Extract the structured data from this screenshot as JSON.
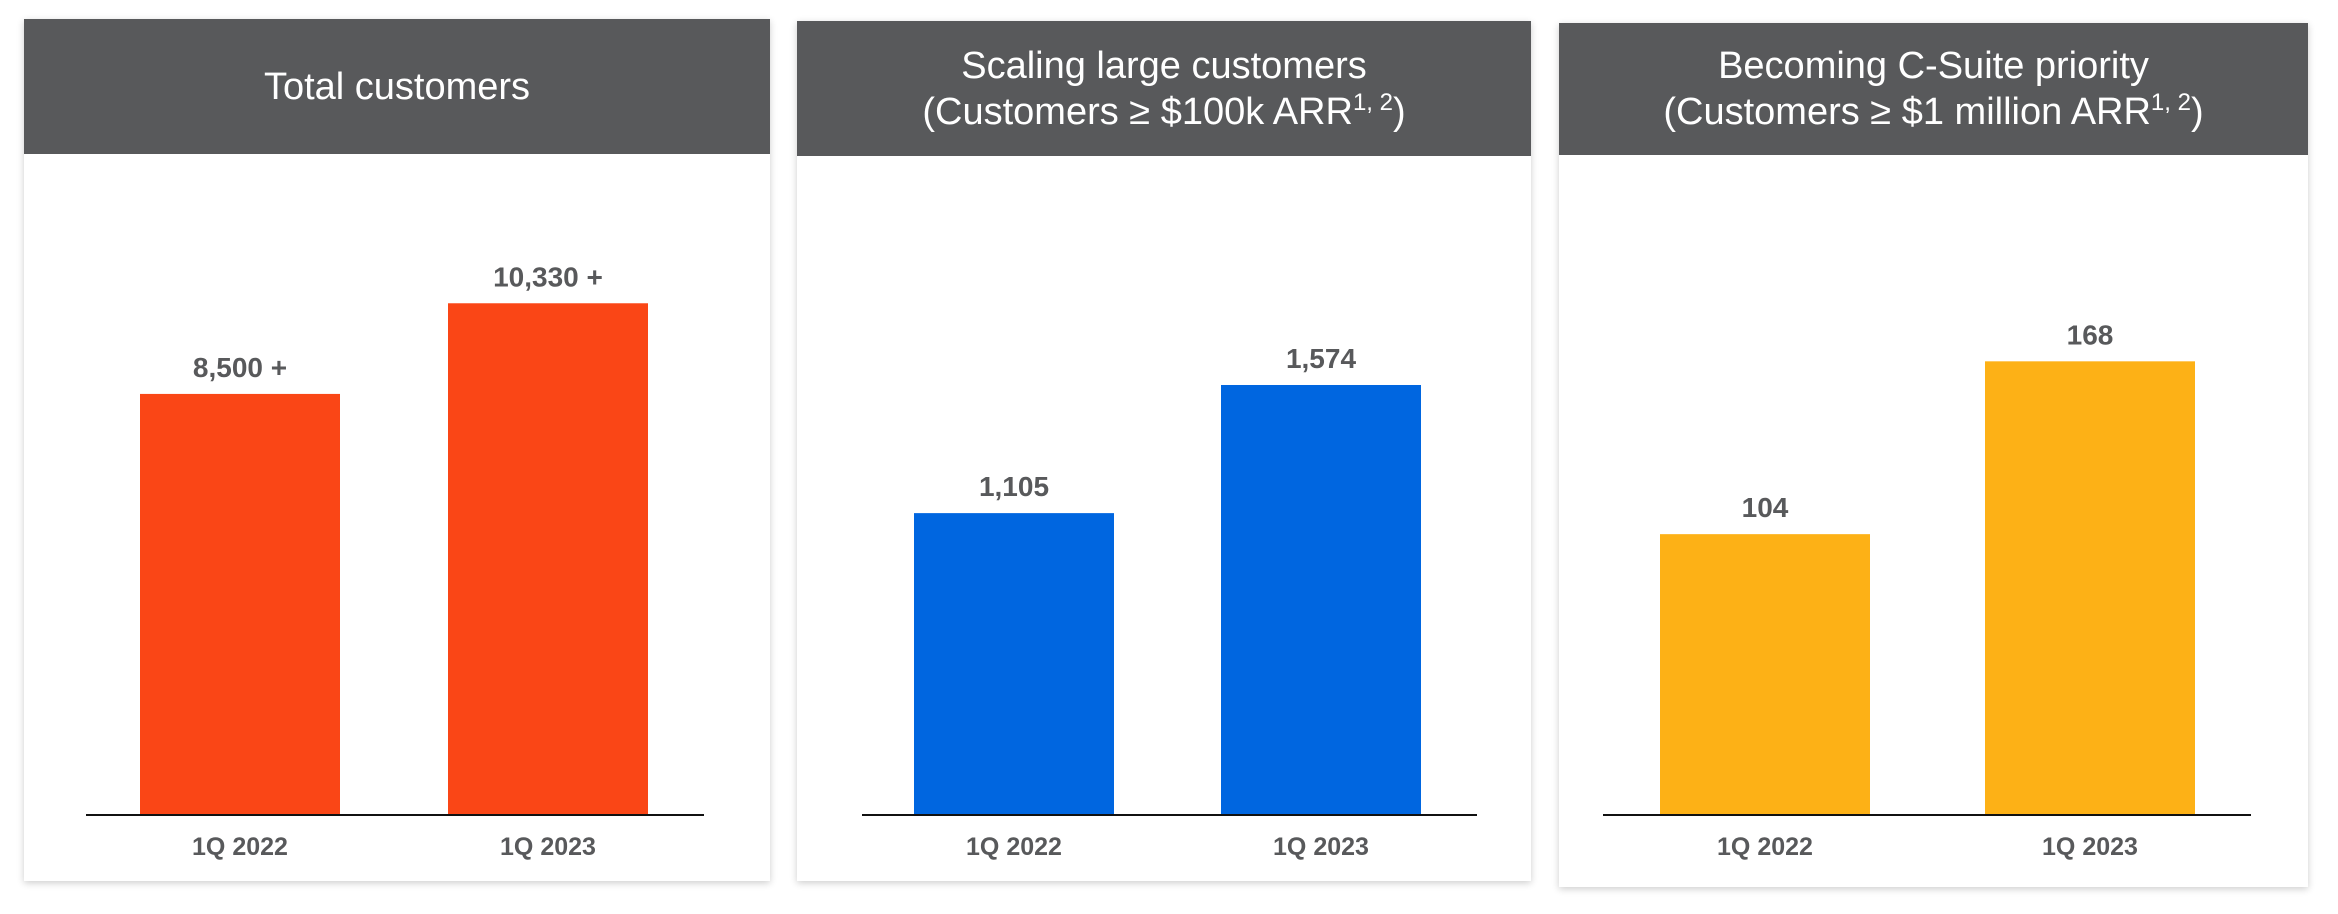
{
  "chart_data": [
    {
      "type": "bar",
      "title": "Total customers",
      "subtitle": "",
      "categories": [
        "1Q 2022",
        "1Q 2023"
      ],
      "values": [
        8500,
        10330
      ],
      "data_labels": [
        "8,500 +",
        "10,330 +"
      ],
      "ylim": [
        0,
        13000
      ],
      "color": "#fa4616",
      "grid": false
    },
    {
      "type": "bar",
      "title": "Scaling large customers",
      "subtitle": "(Customers ≥ $100k ARR",
      "subtitle_sup": "1, 2",
      "subtitle_end": ")",
      "categories": [
        "1Q 2022",
        "1Q 2023"
      ],
      "values": [
        1105,
        1574
      ],
      "data_labels": [
        "1,105",
        "1,574"
      ],
      "ylim": [
        0,
        2350
      ],
      "color": "#0066e0",
      "grid": false
    },
    {
      "type": "bar",
      "title": "Becoming C-Suite priority",
      "subtitle": "(Customers ≥ $1 million ARR",
      "subtitle_sup": "1, 2",
      "subtitle_end": ")",
      "categories": [
        "1Q 2022",
        "1Q 2023"
      ],
      "values": [
        104,
        168
      ],
      "data_labels": [
        "104",
        "168"
      ],
      "ylim": [
        0,
        237
      ],
      "color": "#fdb116",
      "grid": false
    }
  ]
}
